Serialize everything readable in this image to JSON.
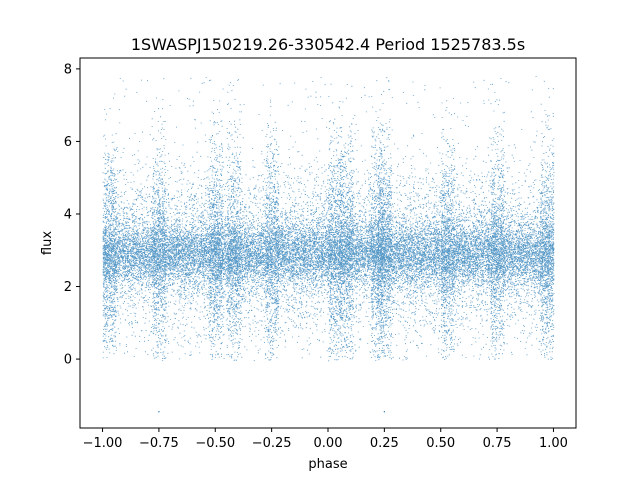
{
  "chart_data": {
    "type": "scatter",
    "title": "1SWASPJ150219.26-330542.4 Period 1525783.5s",
    "xlabel": "phase",
    "ylabel": "flux",
    "xlim": [
      -1.1,
      1.1
    ],
    "ylim": [
      -1.9,
      8.3
    ],
    "xticks": [
      -1.0,
      -0.75,
      -0.5,
      -0.25,
      0.0,
      0.25,
      0.5,
      0.75,
      1.0
    ],
    "xtick_labels": [
      "−1.00",
      "−0.75",
      "−0.50",
      "−0.25",
      "0.00",
      "0.25",
      "0.50",
      "0.75",
      "1.00"
    ],
    "yticks": [
      0,
      2,
      4,
      6,
      8
    ],
    "ytick_labels": [
      "0",
      "2",
      "4",
      "6",
      "8"
    ],
    "grid": false,
    "legend": "none",
    "marker_color": "#1f77b4",
    "series": [
      {
        "x_range": [
          -1.0,
          1.0
        ],
        "flux_core": [
          2.2,
          3.6
        ],
        "flux_spread": [
          0.0,
          7.8
        ],
        "flux_center": 2.9,
        "dense_phases": [
          -0.97,
          -0.75,
          -0.5,
          -0.42,
          -0.25,
          0.03,
          0.08,
          0.22,
          0.25,
          0.53,
          0.75,
          0.97
        ],
        "outliers": [
          {
            "x": -0.75,
            "y": -1.45
          },
          {
            "x": 0.25,
            "y": -1.45
          }
        ]
      }
    ]
  }
}
